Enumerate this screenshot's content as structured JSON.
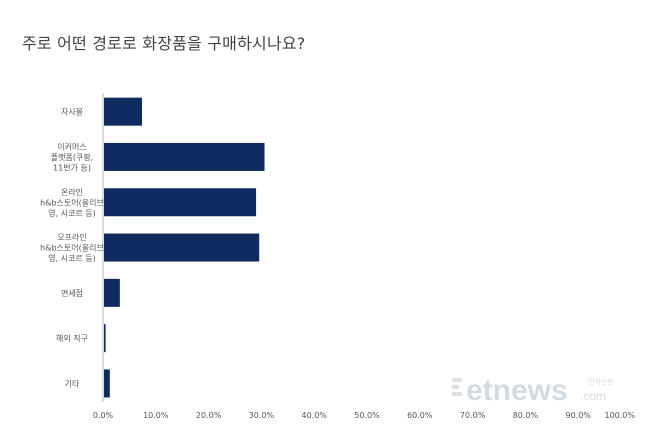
{
  "title": "주로 어떤 경로로 화장품을 구매하시나요?",
  "colors": {
    "bar": "#0f2b5f",
    "axis": "#b8b8b8",
    "text": "#555555"
  },
  "chart_data": {
    "type": "bar",
    "orientation": "horizontal",
    "categories": [
      [
        "자사몰"
      ],
      [
        "이커머스",
        "플랫폼(쿠팡,",
        "11번가 등)"
      ],
      [
        "온라인",
        "h&b스토어(올리브",
        "영, 시코르 등)"
      ],
      [
        "오프라인",
        "h&b스토어(올리브",
        "영, 시코르 등)"
      ],
      [
        "면세점"
      ],
      [
        "해외 직구"
      ],
      [
        "기타"
      ]
    ],
    "values": [
      7.2,
      30.4,
      28.8,
      29.4,
      3.0,
      0.3,
      1.1
    ],
    "xlim": [
      0,
      100
    ],
    "ticks": [
      0,
      10,
      20,
      30,
      40,
      50,
      60,
      70,
      80,
      90,
      100
    ],
    "tick_labels": [
      "0.0%",
      "10.0%",
      "20.0%",
      "30.0%",
      "40.0%",
      "50.0%",
      "60.0%",
      "70.0%",
      "80.0%",
      "90.0%",
      "100.0%"
    ],
    "grid": false
  },
  "watermark": {
    "text": "etnews",
    "suffix": ".com",
    "tagline": "전자신문"
  }
}
